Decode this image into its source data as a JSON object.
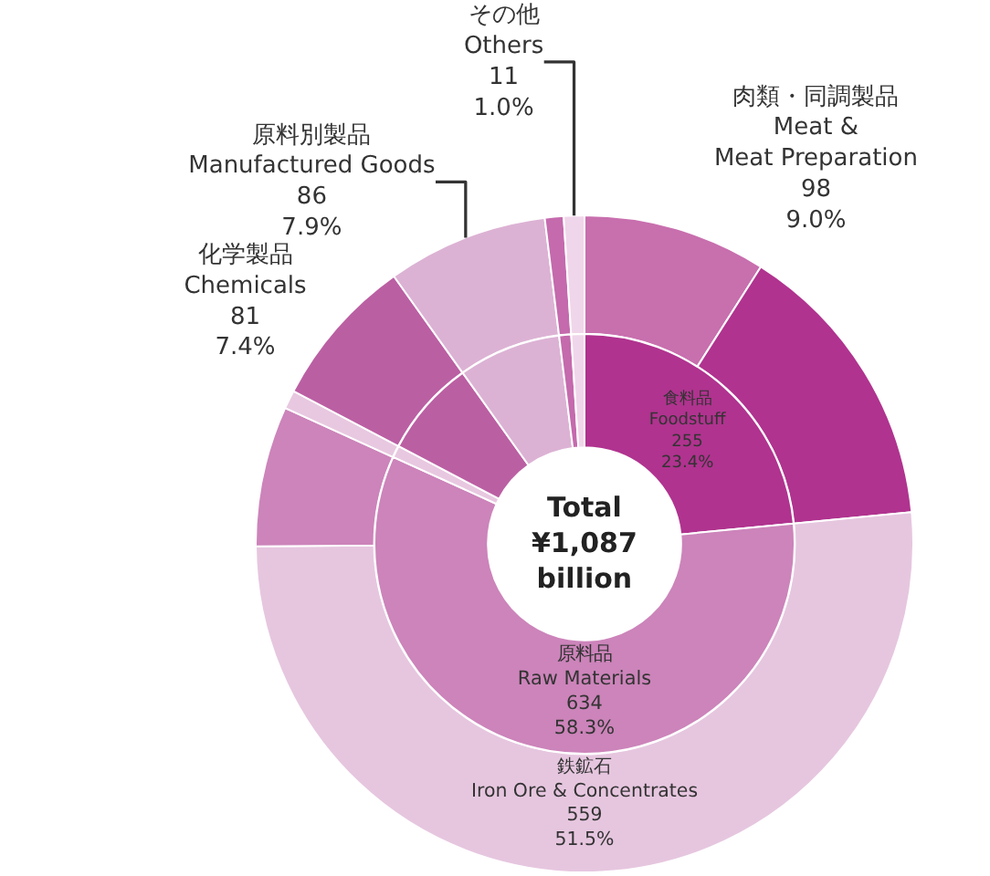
{
  "chart_data": [
    {
      "type": "donut",
      "categories": [
        "食料品\nFoodstuff",
        "原料品\nRaw Materials",
        null,
        null,
        null,
        null,
        null
      ],
      "values": [
        255,
        634,
        10,
        81,
        86,
        10,
        11
      ],
      "colors": [
        "#b0338f",
        "#cc84ba",
        "#e8c8e0",
        "#bb5fa3",
        "#dcb2d4",
        "#c46aad",
        "#f0d6ea"
      ],
      "value_labels": [
        "255\n23.4%",
        "634\n58.3%",
        null,
        null,
        null,
        null,
        null
      ],
      "annotations": [
        "Total\n¥1,087\nbillion"
      ],
      "legend": false
    },
    {
      "type": "donut",
      "categories": [
        "肉類・同調製品\nMeat &\nMeat Preparation",
        null,
        "鉄鉱石\nIron Ore & Concentrates",
        null,
        null,
        "化学製品\nChemicals",
        "原料別製品\nManufactured Goods",
        null,
        "その他\nOthers"
      ],
      "values": [
        98,
        157,
        559,
        75,
        10,
        81,
        86,
        10,
        11
      ],
      "colors": [
        "#c86fae",
        "#b0338f",
        "#e6c6df",
        "#cc84ba",
        "#e8c8e0",
        "#bb5fa3",
        "#dcb2d4",
        "#c46aad",
        "#f0d6ea"
      ],
      "value_labels": [
        "98\n9.0%",
        null,
        "559\n51.5%",
        null,
        null,
        "81\n7.4%",
        "86\n7.9%",
        null,
        "11\n1.0%"
      ],
      "legend": false
    }
  ]
}
